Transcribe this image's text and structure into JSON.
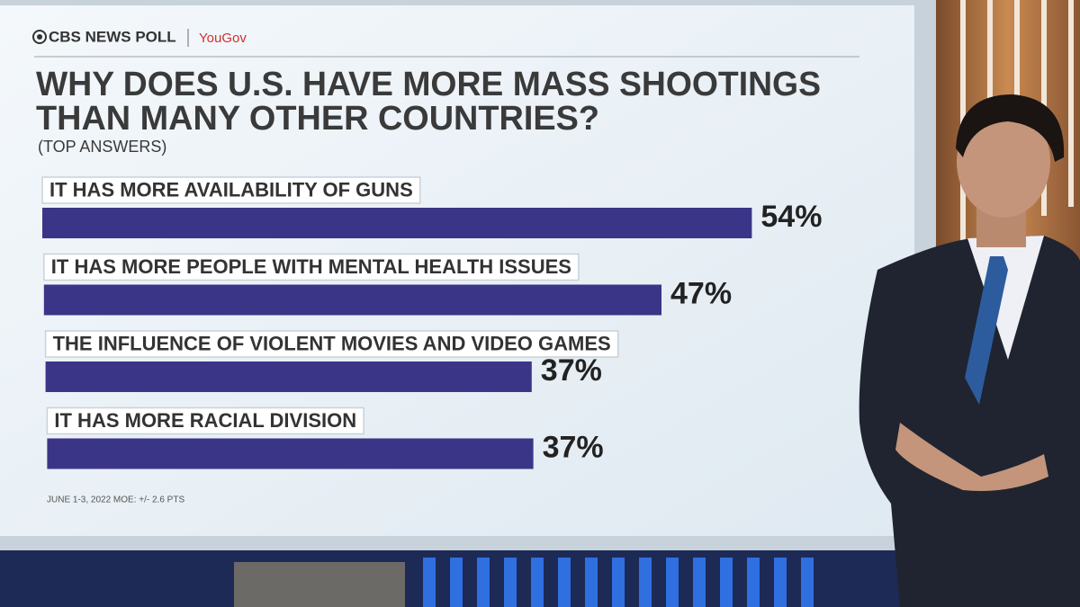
{
  "chart_data": {
    "type": "bar",
    "brand": "CBS NEWS POLL",
    "partner": "YouGov",
    "title_lines": [
      "WHY DOES U.S. HAVE MORE MASS SHOOTINGS",
      "THAN MANY OTHER COUNTRIES?"
    ],
    "subtitle": "(TOP ANSWERS)",
    "categories": [
      "IT HAS MORE AVAILABILITY OF GUNS",
      "IT HAS MORE PEOPLE WITH MENTAL HEALTH ISSUES",
      "THE INFLUENCE OF VIOLENT MOVIES AND VIDEO GAMES",
      "IT HAS MORE RACIAL DIVISION"
    ],
    "values": [
      54,
      47,
      37,
      37
    ],
    "value_labels": [
      "54%",
      "47%",
      "37%",
      "37%"
    ],
    "color": "#3b3588",
    "source": "JUNE 1-3, 2022 MOE: +/- 2.6 PTS"
  }
}
